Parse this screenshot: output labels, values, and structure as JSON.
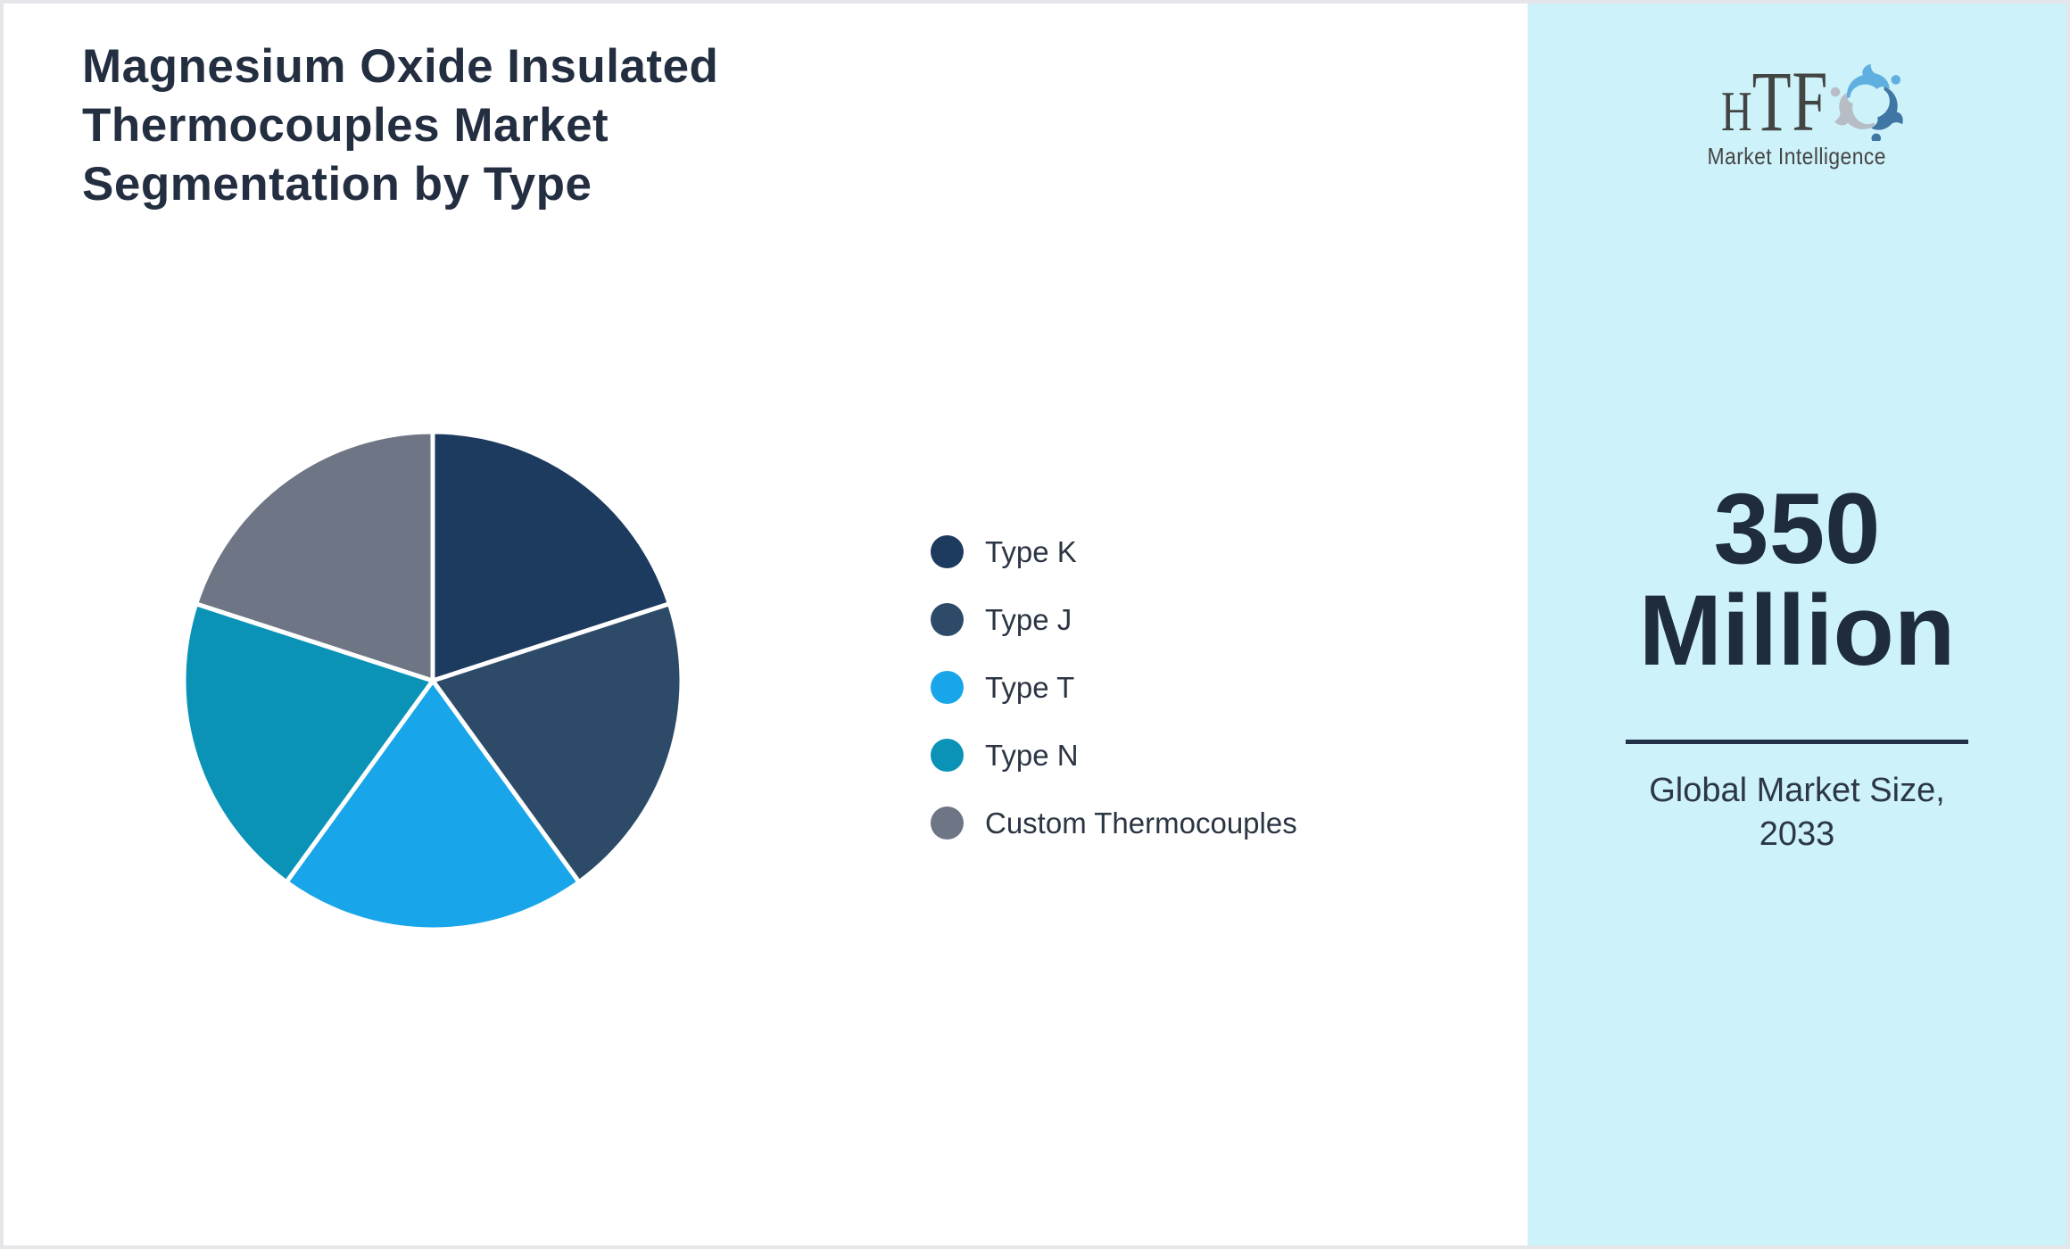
{
  "header": {
    "title": "Magnesium Oxide Insulated Thermocouples Market Segmentation by Type",
    "title_lines": [
      "Magnesium Oxide Insulated",
      "Thermocouples Market",
      "Segmentation by Type"
    ]
  },
  "chart_data": {
    "type": "pie",
    "title": "Magnesium Oxide Insulated Thermocouples Market Segmentation by Type",
    "categories": [
      "Type K",
      "Type J",
      "Type T",
      "Type N",
      "Custom Thermocouples"
    ],
    "values": [
      20,
      20,
      20,
      20,
      20
    ],
    "unit": "percent",
    "colors": [
      "#1d3a5f",
      "#2d4b68",
      "#18a5e9",
      "#0a93b7",
      "#6e7686"
    ],
    "start_angle_deg": 0,
    "direction": "clockwise",
    "slice_border_color": "#ffffff",
    "legend_position": "right"
  },
  "legend": {
    "items": [
      {
        "label": "Type K",
        "color": "#1d3a5f"
      },
      {
        "label": "Type J",
        "color": "#2d4b68"
      },
      {
        "label": "Type T",
        "color": "#18a5e9"
      },
      {
        "label": "Type N",
        "color": "#0a93b7"
      },
      {
        "label": "Custom Thermocouples",
        "color": "#6e7686"
      }
    ]
  },
  "sidebar": {
    "background": "#cdf2fa",
    "logo": {
      "text": "HTF",
      "text_h": "H",
      "text_tf": "TF",
      "subtext": "Market Intelligence",
      "swirl_colors": [
        "#5fb0e0",
        "#3f76a4",
        "#b7bdc5"
      ]
    },
    "stat": {
      "value_line1": "350",
      "value_line2": "Million",
      "label_line1": "Global Market Size,",
      "label_line2": "2033"
    }
  },
  "page": {
    "border_color": "#e4e6e9",
    "background": "#ffffff"
  }
}
